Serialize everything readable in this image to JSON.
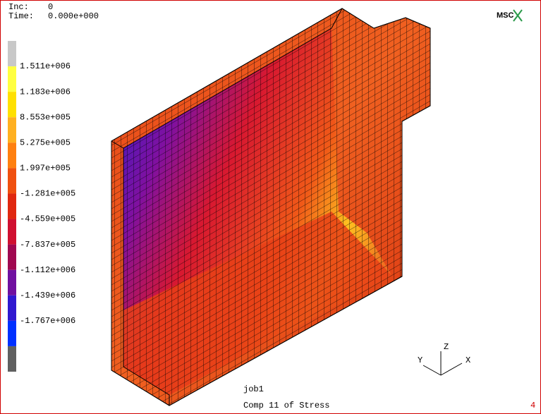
{
  "header": {
    "inc_label": "Inc:",
    "inc": "0",
    "time_label": "Time:",
    "time": "0.000e+000"
  },
  "logo": "MSC",
  "legend": {
    "labels": [
      "1.511e+006",
      "1.183e+006",
      "8.553e+005",
      "5.275e+005",
      "1.997e+005",
      "-1.281e+005",
      "-4.559e+005",
      "-7.837e+005",
      "-1.112e+006",
      "-1.439e+006",
      "-1.767e+006"
    ],
    "colors": [
      "#c8c8c8",
      "#ffff40",
      "#ffe000",
      "#ffb020",
      "#ff8010",
      "#f05010",
      "#e02810",
      "#d01030",
      "#a00850",
      "#7010a0",
      "#3018d0",
      "#0030ff",
      "#606060"
    ]
  },
  "axes": {
    "z": "Z",
    "y": "Y",
    "x": "X"
  },
  "footer": {
    "job": "job1",
    "result": "Comp 11 of Stress",
    "page": "4"
  }
}
